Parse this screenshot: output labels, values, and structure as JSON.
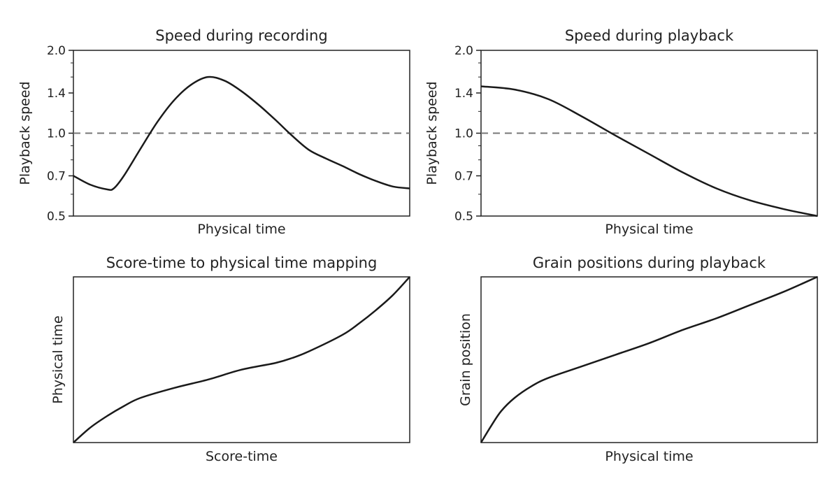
{
  "chart_data": [
    {
      "type": "line",
      "title": "Speed during recording",
      "xlabel": "Physical time",
      "ylabel": "Playback speed",
      "y_scale": "log",
      "ylim": [
        0.5,
        2.0
      ],
      "yticks": [
        "2.0",
        "1.4",
        "1.0",
        "0.7",
        "0.5"
      ],
      "xticks_shown": false,
      "reference_line": {
        "y": 1.0,
        "style": "dashed"
      },
      "x": [
        0.0,
        0.05,
        0.1,
        0.12,
        0.15,
        0.2,
        0.25,
        0.3,
        0.35,
        0.4,
        0.45,
        0.5,
        0.55,
        0.6,
        0.65,
        0.7,
        0.75,
        0.8,
        0.85,
        0.9,
        0.95,
        1.0
      ],
      "y": [
        0.7,
        0.65,
        0.625,
        0.63,
        0.7,
        0.88,
        1.1,
        1.32,
        1.5,
        1.6,
        1.55,
        1.42,
        1.27,
        1.12,
        0.98,
        0.87,
        0.81,
        0.76,
        0.71,
        0.67,
        0.64,
        0.63
      ]
    },
    {
      "type": "line",
      "title": "Speed during playback",
      "xlabel": "Physical time",
      "ylabel": "Playback speed",
      "y_scale": "log",
      "ylim": [
        0.5,
        2.0
      ],
      "yticks": [
        "2.0",
        "1.4",
        "1.0",
        "0.7",
        "0.5"
      ],
      "xticks_shown": false,
      "reference_line": {
        "y": 1.0,
        "style": "dashed"
      },
      "x": [
        0.0,
        0.1,
        0.2,
        0.3,
        0.4,
        0.5,
        0.6,
        0.7,
        0.8,
        0.9,
        1.0
      ],
      "y": [
        1.48,
        1.44,
        1.33,
        1.15,
        0.98,
        0.84,
        0.72,
        0.63,
        0.57,
        0.53,
        0.5
      ]
    },
    {
      "type": "line",
      "title": "Score-time to physical time mapping",
      "xlabel": "Score-time",
      "ylabel": "Physical time",
      "xticks_shown": false,
      "yticks_shown": false,
      "xlim": [
        0,
        1
      ],
      "ylim": [
        0,
        1
      ],
      "x": [
        0.0,
        0.05,
        0.1,
        0.15,
        0.2,
        0.3,
        0.4,
        0.5,
        0.6,
        0.65,
        0.7,
        0.8,
        0.85,
        0.9,
        0.95,
        1.0
      ],
      "y": [
        0.0,
        0.09,
        0.16,
        0.22,
        0.27,
        0.33,
        0.38,
        0.44,
        0.48,
        0.51,
        0.55,
        0.65,
        0.72,
        0.8,
        0.89,
        1.0
      ]
    },
    {
      "type": "line",
      "title": "Grain positions during playback",
      "xlabel": "Physical time",
      "ylabel": "Grain position",
      "xticks_shown": false,
      "yticks_shown": false,
      "xlim": [
        0,
        1
      ],
      "ylim": [
        0,
        1
      ],
      "x": [
        0.0,
        0.03,
        0.06,
        0.1,
        0.15,
        0.2,
        0.3,
        0.4,
        0.5,
        0.6,
        0.7,
        0.8,
        0.9,
        1.0
      ],
      "y": [
        0.0,
        0.1,
        0.19,
        0.27,
        0.34,
        0.39,
        0.46,
        0.53,
        0.6,
        0.68,
        0.75,
        0.83,
        0.91,
        1.0
      ]
    }
  ]
}
